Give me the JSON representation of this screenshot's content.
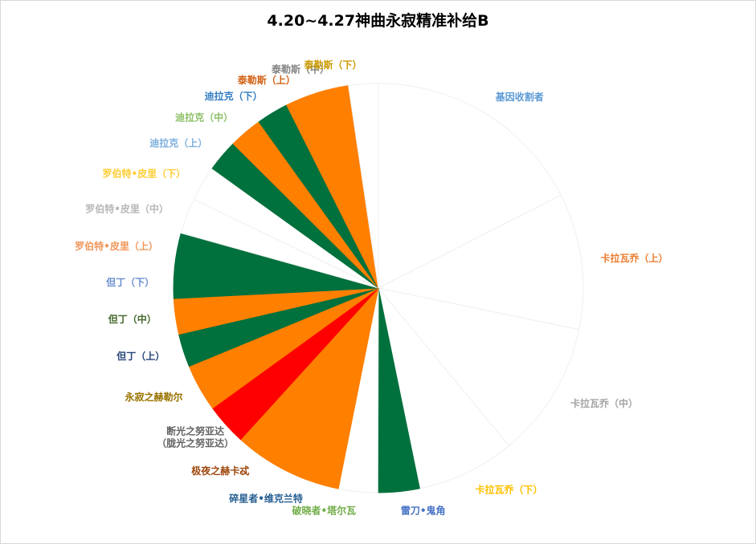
{
  "chart_data": {
    "type": "pie",
    "title": "4.20~4.27神曲永寂精准补给B",
    "slices": [
      {
        "name": "基因收割者",
        "value": 18.7,
        "color": "#ffffff",
        "label_color": "#5b9bd5"
      },
      {
        "name": "卡拉瓦乔（上）",
        "value": 11.5,
        "color": "#ffffff",
        "label_color": "#ed7d31"
      },
      {
        "name": "卡拉瓦乔（中）",
        "value": 11.5,
        "color": "#ffffff",
        "label_color": "#a5a5a5"
      },
      {
        "name": "卡拉瓦乔（下）",
        "value": 8.3,
        "color": "#ffffff",
        "label_color": "#ffc000"
      },
      {
        "name": "雷刀•鬼角",
        "value": 3.5,
        "color": "#00703c",
        "label_color": "#4472c4"
      },
      {
        "name": "破晓者•塔尔瓦",
        "value": 3.3,
        "color": "#ffffff",
        "label_color": "#70ad47"
      },
      {
        "name": "碎星者•维克兰特",
        "value": 5.0,
        "color": "#ff7f00",
        "label_color": "#255e91"
      },
      {
        "name": "极夜之赫卡忒",
        "value": 4.2,
        "color": "#ff7f00",
        "label_color": "#9e480e"
      },
      {
        "name": "断光之努亚达\n（胧光之努亚达）",
        "value": 3.5,
        "color": "#ff0000",
        "label_color": "#636363"
      },
      {
        "name": "永寂之赫勒尔",
        "value": 4.0,
        "color": "#ff7f00",
        "label_color": "#997300"
      },
      {
        "name": "但丁（上）",
        "value": 2.8,
        "color": "#00703c",
        "label_color": "#264478"
      },
      {
        "name": "但丁（中）",
        "value": 3.0,
        "color": "#ff7f00",
        "label_color": "#43682b"
      },
      {
        "name": "但丁（下）",
        "value": 2.6,
        "color": "#00703c",
        "label_color": "#698ed0"
      },
      {
        "name": "罗伯特•皮里（上）",
        "value": 2.9,
        "color": "#00703c",
        "label_color": "#f1975a"
      },
      {
        "name": "罗伯特•皮里（中）",
        "value": 3.0,
        "color": "#ffffff",
        "label_color": "#b7b7b7"
      },
      {
        "name": "罗伯特•皮里（下）",
        "value": 3.0,
        "color": "#ffffff",
        "label_color": "#ffcd33"
      },
      {
        "name": "迪拉克（上）",
        "value": 2.7,
        "color": "#00703c",
        "label_color": "#7cafdd"
      },
      {
        "name": "迪拉克（中）",
        "value": 2.8,
        "color": "#ff7f00",
        "label_color": "#8cc168"
      },
      {
        "name": "迪拉克（下）",
        "value": 2.7,
        "color": "#00703c",
        "label_color": "#327dc2"
      },
      {
        "name": "泰勒斯（上）",
        "value": 2.9,
        "color": "#ff7f00",
        "label_color": "#d26012"
      },
      {
        "name": "泰勒斯（中）",
        "value": 2.5,
        "color": "#ff7f00",
        "label_color": "#848484"
      },
      {
        "name": "泰勒斯（下）",
        "value": 2.5,
        "color": "#ffffff",
        "label_color": "#cc9a00"
      }
    ],
    "start_angle": "top",
    "direction": "clockwise"
  }
}
